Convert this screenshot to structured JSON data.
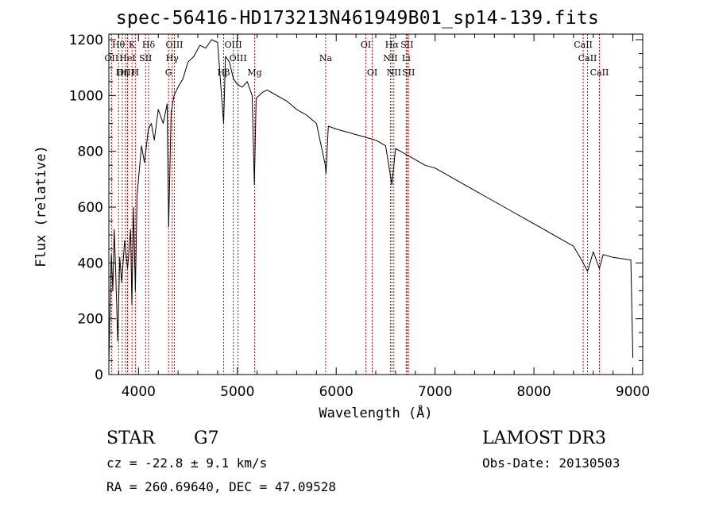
{
  "title": "spec-56416-HD173213N461949B01_sp14-139.fits",
  "footer": {
    "object_class": "STAR",
    "subclass": "G7",
    "redshift": "cz = -22.8 ± 9.1 km/s",
    "coords": "RA = 260.69640, DEC =  47.09528",
    "survey": "LAMOST DR3",
    "obs_date": "Obs-Date: 20130503"
  },
  "chart_data": {
    "type": "line",
    "title": "spec-56416-HD173213N461949B01_sp14-139.fits",
    "xlabel": "Wavelength (Å)",
    "ylabel": "Flux (relative)",
    "xlim": [
      3700,
      9100
    ],
    "ylim": [
      0,
      1220
    ],
    "xticks": [
      4000,
      5000,
      6000,
      7000,
      8000,
      9000
    ],
    "yticks": [
      0,
      200,
      400,
      600,
      800,
      1000,
      1200
    ],
    "grid": false,
    "line_color": "#000000",
    "marker_color": "#cc0000",
    "series": [
      {
        "points": [
          [
            3700,
            40
          ],
          [
            3725,
            430
          ],
          [
            3740,
            300
          ],
          [
            3755,
            520
          ],
          [
            3770,
            360
          ],
          [
            3790,
            120
          ],
          [
            3810,
            420
          ],
          [
            3830,
            330
          ],
          [
            3860,
            480
          ],
          [
            3890,
            380
          ],
          [
            3920,
            520
          ],
          [
            3933,
            250
          ],
          [
            3950,
            600
          ],
          [
            3968,
            300
          ],
          [
            3985,
            640
          ],
          [
            4000,
            700
          ],
          [
            4030,
            820
          ],
          [
            4060,
            760
          ],
          [
            4100,
            880
          ],
          [
            4130,
            900
          ],
          [
            4160,
            840
          ],
          [
            4200,
            950
          ],
          [
            4250,
            900
          ],
          [
            4290,
            970
          ],
          [
            4305,
            530
          ],
          [
            4330,
            940
          ],
          [
            4360,
            1000
          ],
          [
            4400,
            1030
          ],
          [
            4450,
            1060
          ],
          [
            4500,
            1120
          ],
          [
            4560,
            1140
          ],
          [
            4620,
            1180
          ],
          [
            4680,
            1170
          ],
          [
            4740,
            1200
          ],
          [
            4800,
            1190
          ],
          [
            4861,
            900
          ],
          [
            4880,
            1140
          ],
          [
            4920,
            1120
          ],
          [
            4960,
            1060
          ],
          [
            5000,
            1040
          ],
          [
            5050,
            1030
          ],
          [
            5100,
            1050
          ],
          [
            5150,
            1000
          ],
          [
            5172,
            680
          ],
          [
            5190,
            990
          ],
          [
            5250,
            1010
          ],
          [
            5300,
            1020
          ],
          [
            5400,
            1000
          ],
          [
            5500,
            980
          ],
          [
            5600,
            950
          ],
          [
            5700,
            930
          ],
          [
            5800,
            900
          ],
          [
            5890,
            750
          ],
          [
            5896,
            720
          ],
          [
            5920,
            890
          ],
          [
            6000,
            880
          ],
          [
            6100,
            870
          ],
          [
            6200,
            860
          ],
          [
            6300,
            850
          ],
          [
            6400,
            840
          ],
          [
            6500,
            820
          ],
          [
            6563,
            680
          ],
          [
            6600,
            810
          ],
          [
            6700,
            790
          ],
          [
            6800,
            770
          ],
          [
            6900,
            750
          ],
          [
            7000,
            740
          ],
          [
            7100,
            720
          ],
          [
            7200,
            700
          ],
          [
            7300,
            680
          ],
          [
            7400,
            660
          ],
          [
            7500,
            640
          ],
          [
            7600,
            620
          ],
          [
            7700,
            600
          ],
          [
            7800,
            580
          ],
          [
            7900,
            560
          ],
          [
            8000,
            540
          ],
          [
            8100,
            520
          ],
          [
            8200,
            500
          ],
          [
            8300,
            480
          ],
          [
            8400,
            460
          ],
          [
            8498,
            400
          ],
          [
            8542,
            370
          ],
          [
            8600,
            440
          ],
          [
            8662,
            380
          ],
          [
            8700,
            430
          ],
          [
            8800,
            420
          ],
          [
            8900,
            415
          ],
          [
            8980,
            410
          ],
          [
            9000,
            60
          ]
        ]
      }
    ],
    "annotations": [
      {
        "label": "Hθ",
        "wavelength": 3798,
        "row": 0
      },
      {
        "label": "K",
        "wavelength": 3934,
        "row": 0
      },
      {
        "label": "Hδ",
        "wavelength": 4102,
        "row": 0
      },
      {
        "label": "OIII",
        "wavelength": 4363,
        "row": 0
      },
      {
        "label": "OIII",
        "wavelength": 4959,
        "row": 0
      },
      {
        "label": "OI",
        "wavelength": 6300,
        "row": 0
      },
      {
        "label": "Hα",
        "wavelength": 6563,
        "row": 0
      },
      {
        "label": "SII",
        "wavelength": 6716,
        "row": 0
      },
      {
        "label": "CaII",
        "wavelength": 8498,
        "row": 0
      },
      {
        "label": "OII",
        "wavelength": 3727,
        "row": 1
      },
      {
        "label": "HeI",
        "wavelength": 3889,
        "row": 1
      },
      {
        "label": "SII",
        "wavelength": 4072,
        "row": 1
      },
      {
        "label": "Hγ",
        "wavelength": 4341,
        "row": 1
      },
      {
        "label": "OIII",
        "wavelength": 5007,
        "row": 1
      },
      {
        "label": "Na",
        "wavelength": 5893,
        "row": 1
      },
      {
        "label": "NII",
        "wavelength": 6548,
        "row": 1
      },
      {
        "label": "Li",
        "wavelength": 6708,
        "row": 1
      },
      {
        "label": "CaII",
        "wavelength": 8542,
        "row": 1
      },
      {
        "label": "OIII",
        "wavelength": 3869,
        "row": 2
      },
      {
        "label": "Hη",
        "wavelength": 3835,
        "row": 2
      },
      {
        "label": "H",
        "wavelength": 3968,
        "row": 2
      },
      {
        "label": "G",
        "wavelength": 4304,
        "row": 2
      },
      {
        "label": "Hβ",
        "wavelength": 4861,
        "row": 2
      },
      {
        "label": "Mg",
        "wavelength": 5175,
        "row": 2
      },
      {
        "label": "OI",
        "wavelength": 6364,
        "row": 2
      },
      {
        "label": "NII",
        "wavelength": 6583,
        "row": 2
      },
      {
        "label": "SII",
        "wavelength": 6731,
        "row": 2
      },
      {
        "label": "CaII",
        "wavelength": 8662,
        "row": 2
      }
    ]
  }
}
